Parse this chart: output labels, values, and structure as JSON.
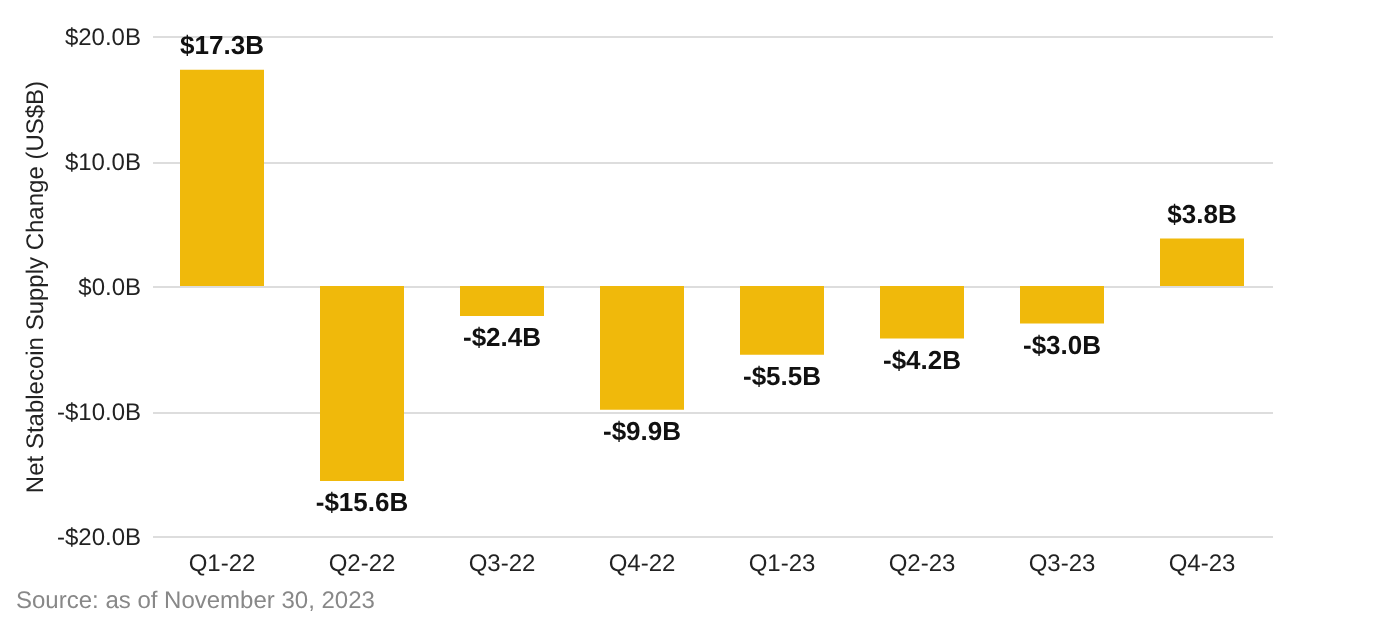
{
  "chart_data": {
    "type": "bar",
    "ylabel": "Net Stablecoin Supply Change (US$B)",
    "categories": [
      "Q1-22",
      "Q2-22",
      "Q3-22",
      "Q4-22",
      "Q1-23",
      "Q2-23",
      "Q3-23",
      "Q4-23"
    ],
    "values": [
      17.3,
      -15.6,
      -2.4,
      -9.9,
      -5.5,
      -4.2,
      -3.0,
      3.8
    ],
    "value_labels": [
      "$17.3B",
      "-$15.6B",
      "-$2.4B",
      "-$9.9B",
      "-$5.5B",
      "-$4.2B",
      "-$3.0B",
      "$3.8B"
    ],
    "color": "#f0b90b",
    "ylim": [
      -20,
      20
    ],
    "yticks": [
      {
        "value": -20,
        "label": "-$20.0B"
      },
      {
        "value": -10,
        "label": "-$10.0B"
      },
      {
        "value": 0,
        "label": "$0.0B"
      },
      {
        "value": 10,
        "label": "$10.0B"
      },
      {
        "value": 20,
        "label": "$20.0B"
      }
    ],
    "grid": "y",
    "annotations": [
      "Source: as of November 30, 2023"
    ]
  }
}
